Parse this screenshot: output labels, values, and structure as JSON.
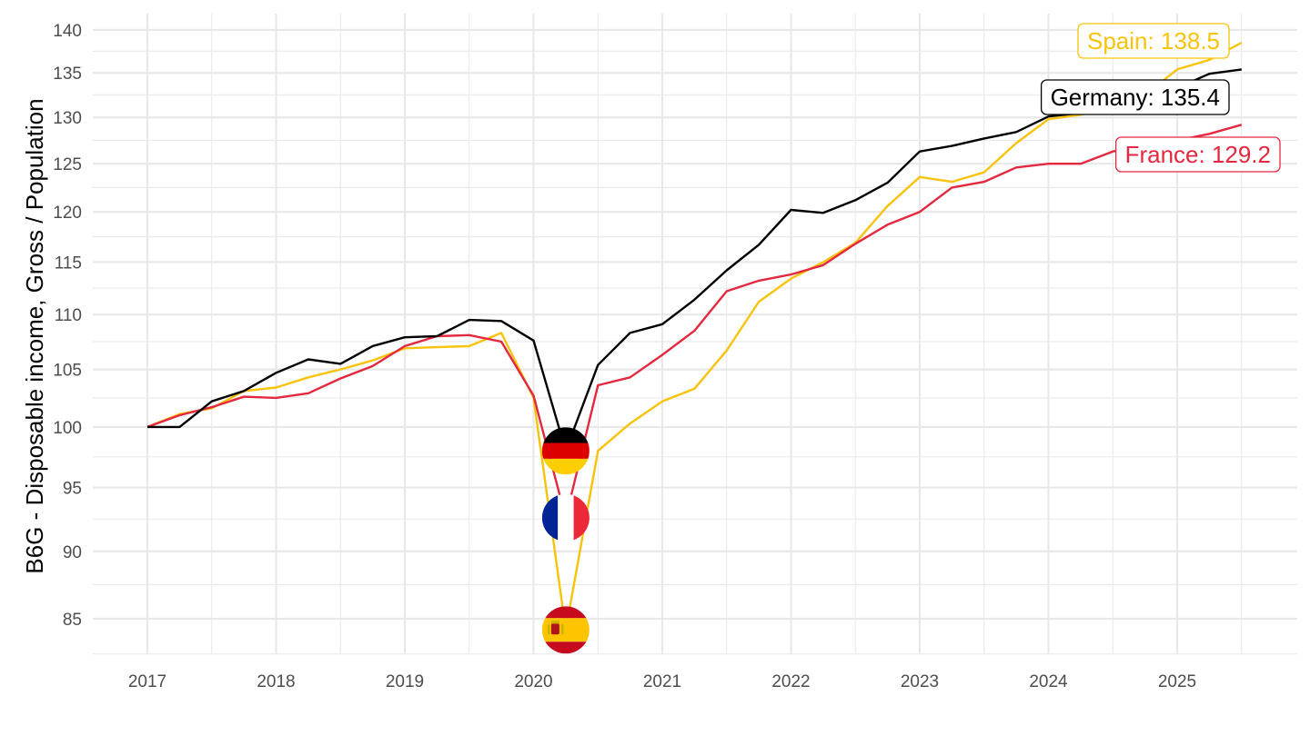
{
  "chart_data": {
    "type": "line",
    "title": "",
    "xlabel": "",
    "ylabel": "B6G - Disposable income, Gross / Population",
    "y_scale": "log",
    "ylim": [
      82.5,
      142
    ],
    "xlim": [
      2016.6,
      2025.9
    ],
    "grid": true,
    "legend": "none (end-of-line labels and flag markers)",
    "x_ticks": [
      "2017",
      "2018",
      "2019",
      "2020",
      "2021",
      "2022",
      "2023",
      "2024",
      "2025"
    ],
    "y_ticks": [
      "85",
      "90",
      "95",
      "100",
      "105",
      "110",
      "115",
      "120",
      "125",
      "130",
      "135",
      "140"
    ],
    "x": [
      2017.0,
      2017.25,
      2017.5,
      2017.75,
      2018.0,
      2018.25,
      2018.5,
      2018.75,
      2019.0,
      2019.25,
      2019.5,
      2019.75,
      2020.0,
      2020.25,
      2020.5,
      2020.75,
      2021.0,
      2021.25,
      2021.5,
      2021.75,
      2022.0,
      2022.25,
      2022.5,
      2022.75,
      2023.0,
      2023.25,
      2023.5,
      2023.75,
      2024.0,
      2024.25,
      2024.5,
      2024.75,
      2025.0,
      2025.25,
      2025.5
    ],
    "series": [
      {
        "name": "Germany",
        "color": "#000000",
        "flag": "germany",
        "end_label": "Germany: 135.4",
        "values": [
          100.0,
          100.0,
          102.2,
          103.1,
          104.7,
          105.9,
          105.5,
          107.1,
          107.9,
          108.0,
          109.5,
          109.4,
          107.6,
          98.0,
          105.4,
          108.3,
          109.1,
          111.4,
          114.2,
          116.7,
          120.2,
          119.9,
          121.2,
          123.0,
          126.3,
          126.9,
          127.7,
          128.4,
          130.1,
          130.5,
          131.6,
          132.4,
          133.3,
          134.9,
          135.4
        ]
      },
      {
        "name": "France",
        "color": "#e3283f",
        "flag": "france",
        "end_label": "France: 129.2",
        "values": [
          100.0,
          101.0,
          101.7,
          102.6,
          102.5,
          102.9,
          104.2,
          105.3,
          107.1,
          108.0,
          108.1,
          107.5,
          102.7,
          92.6,
          103.6,
          104.3,
          106.3,
          108.5,
          112.2,
          113.2,
          113.8,
          114.7,
          116.8,
          118.7,
          120.0,
          122.5,
          123.1,
          124.6,
          125.0,
          125.0,
          126.3,
          127.0,
          127.5,
          128.2,
          129.2
        ]
      },
      {
        "name": "Spain",
        "color": "#f9c30b",
        "flag": "spain",
        "end_label": "Spain: 138.5",
        "values": [
          100.0,
          101.1,
          101.6,
          103.1,
          103.4,
          104.3,
          105.0,
          105.8,
          106.9,
          107.0,
          107.1,
          108.3,
          102.5,
          84.2,
          98.0,
          100.3,
          102.2,
          103.3,
          106.7,
          111.2,
          113.4,
          115.0,
          116.9,
          120.6,
          123.6,
          123.1,
          124.1,
          127.2,
          129.8,
          130.3,
          131.0,
          132.5,
          135.4,
          136.5,
          138.5
        ]
      }
    ]
  }
}
